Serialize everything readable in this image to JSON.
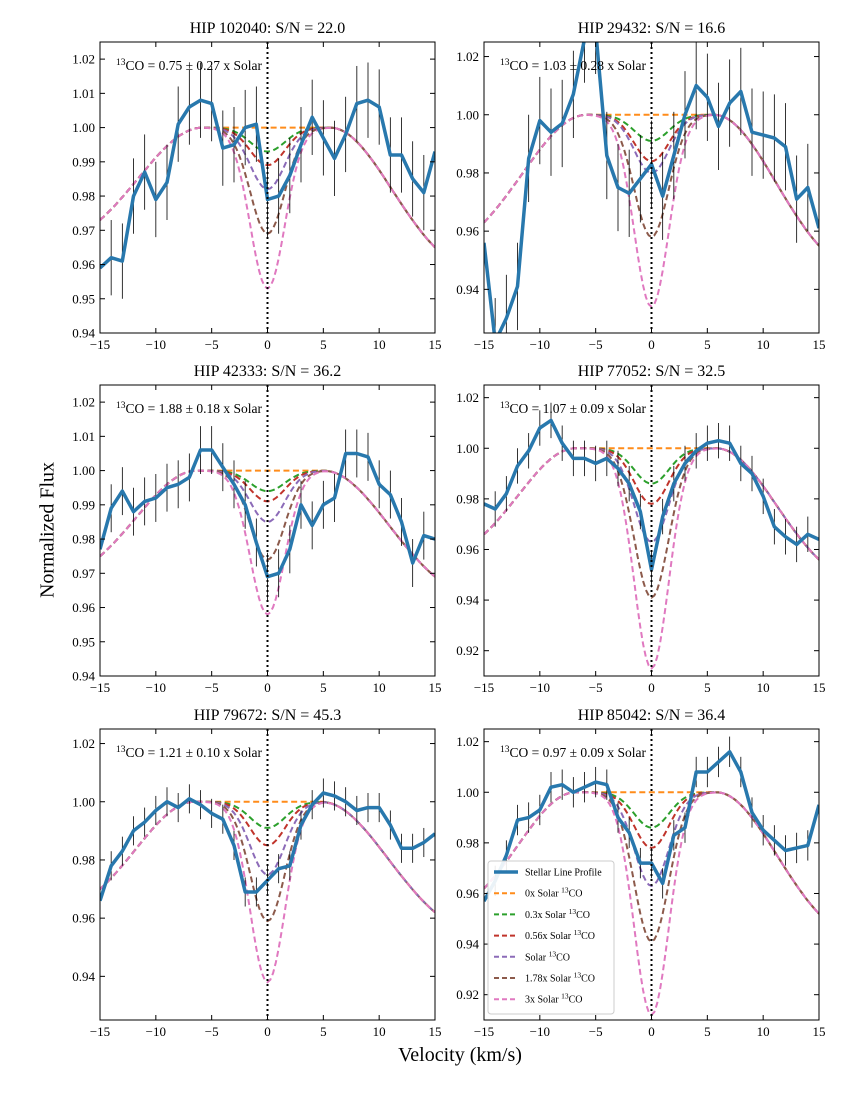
{
  "figure": {
    "xlabel": "Velocity (km/s)",
    "ylabel": "Normalized Flux"
  },
  "colors": {
    "Stellar Line Profile": "#2878ad",
    "0x Solar": "#ff8c1a",
    "0.3x Solar": "#2ca02c",
    "0.56x Solar": "#c0342b",
    "Solar": "#8c6bb8",
    "1.78x Solar": "#8c5a4b",
    "3x Solar": "#e079c0"
  },
  "legend": {
    "placement": "lower-left of bottom-right panel",
    "entries": [
      {
        "key": "Stellar Line Profile",
        "label": "Stellar Line Profile",
        "sup": "",
        "style": "solid"
      },
      {
        "key": "0x Solar",
        "label": "0x Solar ",
        "sup": "13",
        "tail": "CO",
        "style": "dashed"
      },
      {
        "key": "0.3x Solar",
        "label": "0.3x Solar ",
        "sup": "13",
        "tail": "CO",
        "style": "dashed"
      },
      {
        "key": "0.56x Solar",
        "label": "0.56x Solar ",
        "sup": "13",
        "tail": "CO",
        "style": "dashed"
      },
      {
        "key": "Solar",
        "label": "Solar ",
        "sup": "13",
        "tail": "CO",
        "style": "dashed"
      },
      {
        "key": "1.78x Solar",
        "label": "1.78x Solar ",
        "sup": "13",
        "tail": "CO",
        "style": "dashed"
      },
      {
        "key": "3x Solar",
        "label": "3x Solar ",
        "sup": "13",
        "tail": "CO",
        "style": "dashed"
      }
    ]
  },
  "chart_data": [
    {
      "type": "line",
      "title": "HIP 102040: S/N = 22.0",
      "annotation": {
        "sup": "13",
        "text": "CO = 0.75 ± 0.27 x Solar"
      },
      "xlim": [
        -15,
        15
      ],
      "ylim": [
        0.94,
        1.025
      ],
      "xticks": [
        -15,
        -10,
        -5,
        0,
        5,
        10,
        15
      ],
      "yticks": [
        0.94,
        0.95,
        0.96,
        0.97,
        0.98,
        0.99,
        1.0,
        1.01,
        1.02
      ],
      "ytick_labels": [
        "0.94",
        "0.95",
        "0.96",
        "0.97",
        "0.98",
        "0.99",
        "1.00",
        "1.01",
        "1.02"
      ],
      "models": {
        "peak": 1.0,
        "tail": 0.965,
        "left_edge": 0.973,
        "peak_left": -5.8,
        "peak_right": 5.6,
        "depths": {
          "0x Solar": 0.0,
          "0.3x Solar": 0.007,
          "0.56x Solar": 0.011,
          "Solar": 0.018,
          "1.78x Solar": 0.031,
          "3x Solar": 0.047
        }
      },
      "stellar": {
        "x": [
          -15,
          -14,
          -13,
          -12,
          -11,
          -10,
          -9,
          -8,
          -7,
          -6,
          -5,
          -4,
          -3,
          -2,
          -1,
          0,
          1,
          2,
          3,
          4,
          5,
          6,
          7,
          8,
          9,
          10,
          11,
          12,
          13,
          14,
          15
        ],
        "y": [
          0.959,
          0.962,
          0.961,
          0.98,
          0.987,
          0.979,
          0.984,
          1.001,
          1.006,
          1.008,
          1.007,
          0.994,
          0.995,
          1.0,
          1.001,
          0.979,
          0.98,
          0.986,
          0.995,
          1.003,
          0.997,
          0.991,
          0.998,
          1.007,
          1.008,
          1.006,
          0.992,
          0.992,
          0.985,
          0.981,
          0.993
        ]
      },
      "error": 0.011
    },
    {
      "type": "line",
      "title": "HIP 29432: S/N = 16.6",
      "annotation": {
        "sup": "13",
        "text": "CO = 1.03 ± 0.28 x Solar"
      },
      "xlim": [
        -15,
        15
      ],
      "ylim": [
        0.925,
        1.025
      ],
      "xticks": [
        -15,
        -10,
        -5,
        0,
        5,
        10,
        15
      ],
      "yticks": [
        0.94,
        0.96,
        0.98,
        1.0,
        1.02
      ],
      "ytick_labels": [
        "0.94",
        "0.96",
        "0.98",
        "1.00",
        "1.02"
      ],
      "models": {
        "peak": 1.0,
        "tail": 0.955,
        "left_edge": 0.963,
        "peak_left": -5.8,
        "peak_right": 5.6,
        "depths": {
          "0x Solar": 0.0,
          "0.3x Solar": 0.009,
          "0.56x Solar": 0.016,
          "Solar": 0.02,
          "1.78x Solar": 0.042,
          "3x Solar": 0.066
        }
      },
      "stellar": {
        "x": [
          -15,
          -14,
          -13,
          -12,
          -11,
          -10,
          -9,
          -8,
          -7,
          -6,
          -5,
          -4,
          -3,
          -2,
          -1,
          0,
          1,
          2,
          3,
          4,
          5,
          6,
          7,
          8,
          9,
          10,
          11,
          12,
          13,
          14,
          15
        ],
        "y": [
          0.956,
          0.922,
          0.93,
          0.941,
          0.985,
          0.998,
          0.994,
          0.997,
          1.007,
          1.026,
          1.029,
          0.986,
          0.975,
          0.973,
          0.978,
          0.983,
          0.972,
          0.986,
          1.0,
          1.01,
          1.006,
          0.996,
          1.004,
          1.008,
          0.994,
          0.993,
          0.992,
          0.989,
          0.971,
          0.975,
          0.961
        ]
      },
      "error": 0.015
    },
    {
      "type": "line",
      "title": "HIP 42333: S/N = 36.2",
      "annotation": {
        "sup": "13",
        "text": "CO = 1.88 ± 0.18 x Solar"
      },
      "xlim": [
        -15,
        15
      ],
      "ylim": [
        0.94,
        1.025
      ],
      "xticks": [
        -15,
        -10,
        -5,
        0,
        5,
        10,
        15
      ],
      "yticks": [
        0.94,
        0.95,
        0.96,
        0.97,
        0.98,
        0.99,
        1.0,
        1.01,
        1.02
      ],
      "ytick_labels": [
        "0.94",
        "0.95",
        "0.96",
        "0.97",
        "0.98",
        "0.99",
        "1.00",
        "1.01",
        "1.02"
      ],
      "models": {
        "peak": 1.0,
        "tail": 0.969,
        "left_edge": 0.975,
        "peak_left": -6.3,
        "peak_right": 5.0,
        "depths": {
          "0x Solar": 0.0,
          "0.3x Solar": 0.006,
          "0.56x Solar": 0.009,
          "Solar": 0.015,
          "1.78x Solar": 0.026,
          "3x Solar": 0.042
        }
      },
      "stellar": {
        "x": [
          -15,
          -14,
          -13,
          -12,
          -11,
          -10,
          -9,
          -8,
          -7,
          -6,
          -5,
          -4,
          -3,
          -2,
          -1,
          0,
          1,
          2,
          3,
          4,
          5,
          6,
          7,
          8,
          9,
          10,
          11,
          12,
          13,
          14,
          15
        ],
        "y": [
          0.977,
          0.989,
          0.994,
          0.988,
          0.991,
          0.992,
          0.995,
          0.996,
          0.998,
          1.006,
          1.006,
          1.001,
          0.996,
          0.99,
          0.979,
          0.969,
          0.97,
          0.977,
          0.99,
          0.984,
          0.99,
          0.992,
          1.005,
          1.005,
          1.004,
          0.996,
          0.993,
          0.985,
          0.973,
          0.981,
          0.98
        ]
      },
      "error": 0.007
    },
    {
      "type": "line",
      "title": "HIP 77052: S/N = 32.5",
      "annotation": {
        "sup": "13",
        "text": "CO = 1.07 ± 0.09 x Solar"
      },
      "xlim": [
        -15,
        15
      ],
      "ylim": [
        0.91,
        1.025
      ],
      "xticks": [
        -15,
        -10,
        -5,
        0,
        5,
        10,
        15
      ],
      "yticks": [
        0.92,
        0.94,
        0.96,
        0.98,
        1.0,
        1.02
      ],
      "ytick_labels": [
        "0.92",
        "0.94",
        "0.96",
        "0.98",
        "1.00",
        "1.02"
      ],
      "models": {
        "peak": 1.0,
        "tail": 0.956,
        "left_edge": 0.966,
        "peak_left": -6.8,
        "peak_right": 5.8,
        "depths": {
          "0x Solar": 0.0,
          "0.3x Solar": 0.014,
          "0.56x Solar": 0.022,
          "Solar": 0.037,
          "1.78x Solar": 0.059,
          "3x Solar": 0.087
        }
      },
      "stellar": {
        "x": [
          -15,
          -14,
          -13,
          -12,
          -11,
          -10,
          -9,
          -8,
          -7,
          -6,
          -5,
          -4,
          -3,
          -2,
          -1,
          0,
          1,
          2,
          3,
          4,
          5,
          6,
          7,
          8,
          9,
          10,
          11,
          12,
          13,
          14,
          15
        ],
        "y": [
          0.978,
          0.976,
          0.982,
          0.993,
          0.999,
          1.008,
          1.011,
          1.002,
          0.996,
          0.996,
          0.994,
          0.996,
          0.992,
          0.986,
          0.975,
          0.952,
          0.973,
          0.986,
          0.994,
          0.999,
          1.002,
          1.003,
          1.002,
          0.994,
          0.99,
          0.981,
          0.969,
          0.965,
          0.962,
          0.966,
          0.964
        ]
      },
      "error": 0.007
    },
    {
      "type": "line",
      "title": "HIP 79672: S/N = 45.3",
      "annotation": {
        "sup": "13",
        "text": "CO = 1.21 ± 0.10 x Solar"
      },
      "xlim": [
        -15,
        15
      ],
      "ylim": [
        0.925,
        1.025
      ],
      "xticks": [
        -15,
        -10,
        -5,
        0,
        5,
        10,
        15
      ],
      "yticks": [
        0.94,
        0.96,
        0.98,
        1.0,
        1.02
      ],
      "ytick_labels": [
        "0.94",
        "0.96",
        "0.98",
        "1.00",
        "1.02"
      ],
      "models": {
        "peak": 1.0,
        "tail": 0.962,
        "left_edge": 0.97,
        "peak_left": -6.5,
        "peak_right": 4.8,
        "depths": {
          "0x Solar": 0.0,
          "0.3x Solar": 0.009,
          "0.56x Solar": 0.015,
          "Solar": 0.025,
          "1.78x Solar": 0.041,
          "3x Solar": 0.062
        }
      },
      "stellar": {
        "x": [
          -15,
          -14,
          -13,
          -12,
          -11,
          -10,
          -9,
          -8,
          -7,
          -6,
          -5,
          -4,
          -3,
          -2,
          -1,
          0,
          1,
          2,
          3,
          4,
          5,
          6,
          7,
          8,
          9,
          10,
          11,
          12,
          13,
          14,
          15
        ],
        "y": [
          0.966,
          0.978,
          0.983,
          0.99,
          0.993,
          0.997,
          1.0,
          0.998,
          1.001,
          0.999,
          0.996,
          0.994,
          0.985,
          0.969,
          0.969,
          0.973,
          0.977,
          0.978,
          0.992,
          0.999,
          1.003,
          1.002,
          1.0,
          0.997,
          0.998,
          0.998,
          0.992,
          0.984,
          0.984,
          0.986,
          0.989
        ]
      },
      "error": 0.005
    },
    {
      "type": "line",
      "title": "HIP 85042: S/N = 36.4",
      "annotation": {
        "sup": "13",
        "text": "CO = 0.97 ± 0.09 x Solar"
      },
      "xlim": [
        -15,
        15
      ],
      "ylim": [
        0.91,
        1.025
      ],
      "xticks": [
        -15,
        -10,
        -5,
        0,
        5,
        10,
        15
      ],
      "yticks": [
        0.92,
        0.94,
        0.96,
        0.98,
        1.0,
        1.02
      ],
      "ytick_labels": [
        "0.92",
        "0.94",
        "0.96",
        "0.98",
        "1.00",
        "1.02"
      ],
      "models": {
        "peak": 1.0,
        "tail": 0.952,
        "left_edge": 0.962,
        "peak_left": -6.8,
        "peak_right": 5.8,
        "depths": {
          "0x Solar": 0.0,
          "0.3x Solar": 0.014,
          "0.56x Solar": 0.022,
          "Solar": 0.037,
          "1.78x Solar": 0.059,
          "3x Solar": 0.088
        }
      },
      "stellar": {
        "x": [
          -15,
          -14,
          -13,
          -12,
          -11,
          -10,
          -9,
          -8,
          -7,
          -6,
          -5,
          -4,
          -3,
          -2,
          -1,
          0,
          1,
          2,
          3,
          4,
          5,
          6,
          7,
          8,
          9,
          10,
          11,
          12,
          13,
          14,
          15
        ],
        "y": [
          0.957,
          0.965,
          0.975,
          0.989,
          0.99,
          0.993,
          1.002,
          1.003,
          1.0,
          1.002,
          1.004,
          1.003,
          0.99,
          0.984,
          0.972,
          0.972,
          0.964,
          0.983,
          0.986,
          1.008,
          1.008,
          1.012,
          1.016,
          1.008,
          0.992,
          0.985,
          0.981,
          0.977,
          0.978,
          0.979,
          0.995
        ]
      },
      "error": 0.006
    }
  ]
}
